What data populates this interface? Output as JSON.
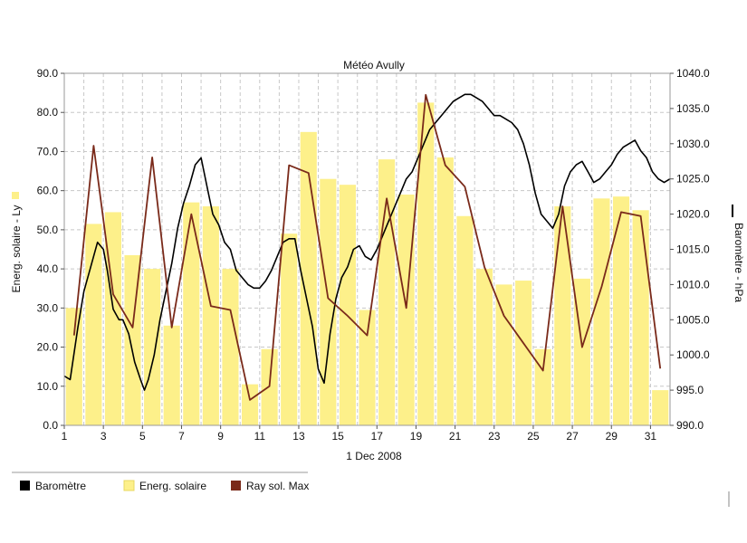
{
  "chart_data": {
    "type": "bar",
    "title": "Météo Avully",
    "xlabel": "1 Dec 2008",
    "ylabel_left": "Energ. solaire - Ly",
    "ylabel_right": "Baromètre - hPa",
    "x_ticks": [
      "1",
      "3",
      "5",
      "7",
      "9",
      "11",
      "13",
      "15",
      "17",
      "19",
      "21",
      "23",
      "25",
      "27",
      "29",
      "31"
    ],
    "y_left_ticks": [
      "0.0",
      "10.0",
      "20.0",
      "30.0",
      "40.0",
      "50.0",
      "60.0",
      "70.0",
      "80.0",
      "90.0"
    ],
    "y_right_ticks": [
      "990.0",
      "995.0",
      "1000.0",
      "1005.0",
      "1010.0",
      "1015.0",
      "1020.0",
      "1025.0",
      "1030.0",
      "1035.0",
      "1040.0"
    ],
    "ylim_left": [
      0,
      90
    ],
    "ylim_right": [
      990,
      1040
    ],
    "xlim": [
      1,
      32
    ],
    "grid": true,
    "legend_position": "bottom",
    "days": [
      1,
      2,
      3,
      4,
      5,
      6,
      7,
      8,
      9,
      10,
      11,
      12,
      13,
      14,
      15,
      16,
      17,
      18,
      19,
      20,
      21,
      22,
      23,
      24,
      25,
      26,
      27,
      28,
      29,
      30,
      31,
      32
    ],
    "series": [
      {
        "name": "Baromètre",
        "type": "line",
        "axis": "right",
        "color": "#000000",
        "x": [
          1,
          1.3,
          1.7,
          2,
          2.3,
          2.7,
          3,
          3.2,
          3.5,
          3.8,
          4,
          4.3,
          4.6,
          4.9,
          5.1,
          5.3,
          5.6,
          5.9,
          6.2,
          6.5,
          6.8,
          7.1,
          7.4,
          7.7,
          8,
          8.3,
          8.6,
          8.9,
          9.2,
          9.5,
          9.8,
          10.1,
          10.4,
          10.7,
          11,
          11.3,
          11.6,
          11.9,
          12.2,
          12.5,
          12.8,
          13.1,
          13.4,
          13.7,
          14,
          14.3,
          14.6,
          14.9,
          15.2,
          15.5,
          15.8,
          16.1,
          16.4,
          16.7,
          17,
          17.3,
          17.6,
          17.9,
          18.2,
          18.5,
          18.8,
          19.1,
          19.4,
          19.7,
          20,
          20.3,
          20.6,
          20.9,
          21.2,
          21.5,
          21.8,
          22.1,
          22.4,
          22.7,
          23,
          23.3,
          23.6,
          23.9,
          24.2,
          24.5,
          24.8,
          25.1,
          25.4,
          25.7,
          26,
          26.3,
          26.6,
          26.9,
          27.2,
          27.5,
          27.8,
          28.1,
          28.4,
          28.7,
          29,
          29.3,
          29.6,
          29.9,
          30.2,
          30.5,
          30.8,
          31.1,
          31.4,
          31.7,
          32
        ],
        "values": [
          997,
          996.5,
          1004,
          1009,
          1012,
          1016,
          1015,
          1012,
          1006.5,
          1005,
          1005,
          1003,
          999,
          996.5,
          995,
          996.5,
          1000,
          1005,
          1009,
          1013,
          1018,
          1021.5,
          1024,
          1027,
          1028,
          1024,
          1020,
          1018.5,
          1016,
          1015,
          1012,
          1011,
          1010,
          1009.5,
          1009.5,
          1010.5,
          1012,
          1014,
          1016,
          1016.5,
          1016.5,
          1012,
          1008,
          1004,
          998,
          996,
          1003,
          1008,
          1011,
          1012.5,
          1015,
          1015.5,
          1014,
          1013.5,
          1015,
          1017,
          1019,
          1021,
          1023,
          1025,
          1026,
          1028,
          1030,
          1032,
          1033,
          1034,
          1035,
          1036,
          1036.5,
          1037,
          1037,
          1036.5,
          1036,
          1035,
          1034,
          1034,
          1033.5,
          1033,
          1032,
          1030,
          1027,
          1023,
          1020,
          1019,
          1018,
          1020,
          1024,
          1026,
          1027,
          1027.5,
          1026,
          1024.5,
          1025,
          1026,
          1027,
          1028.5,
          1029.5,
          1030,
          1030.5,
          1029,
          1028,
          1026,
          1025,
          1024.5,
          1025
        ]
      },
      {
        "name": "Energ. solaire",
        "type": "bar",
        "axis": "left",
        "color": "#fdf08a",
        "values": [
          30,
          51.5,
          54.5,
          43.5,
          40,
          25.5,
          57,
          56,
          40,
          10.5,
          19.5,
          49,
          75,
          63,
          61.5,
          29.5,
          68,
          59,
          82.5,
          68.5,
          53.5,
          40,
          36,
          37,
          19.5,
          56,
          37.5,
          58,
          58.5,
          55,
          9
        ]
      },
      {
        "name": "Ray sol. Max",
        "type": "line",
        "axis": "left",
        "color": "#7a2a1a",
        "x": [
          1.5,
          2.5,
          3.5,
          4.5,
          5.5,
          6.5,
          7.5,
          8.5,
          9.5,
          10.5,
          11.5,
          12.5,
          13.5,
          14.5,
          15.5,
          16.5,
          17.5,
          18.5,
          19.5,
          20.5,
          21.5,
          22.5,
          23.5,
          24.5,
          25.5,
          26.5,
          27.5,
          28.5,
          29.5,
          30.5,
          31.5
        ],
        "values": [
          23,
          71.5,
          33.5,
          25,
          68.5,
          25,
          54,
          30.5,
          29.5,
          6.5,
          10,
          66.5,
          64.5,
          32.5,
          28,
          23,
          58,
          30,
          84.5,
          66.5,
          61,
          40.5,
          28,
          21,
          14,
          56,
          20,
          35.5,
          54.5,
          53.5,
          14.5
        ]
      }
    ]
  }
}
